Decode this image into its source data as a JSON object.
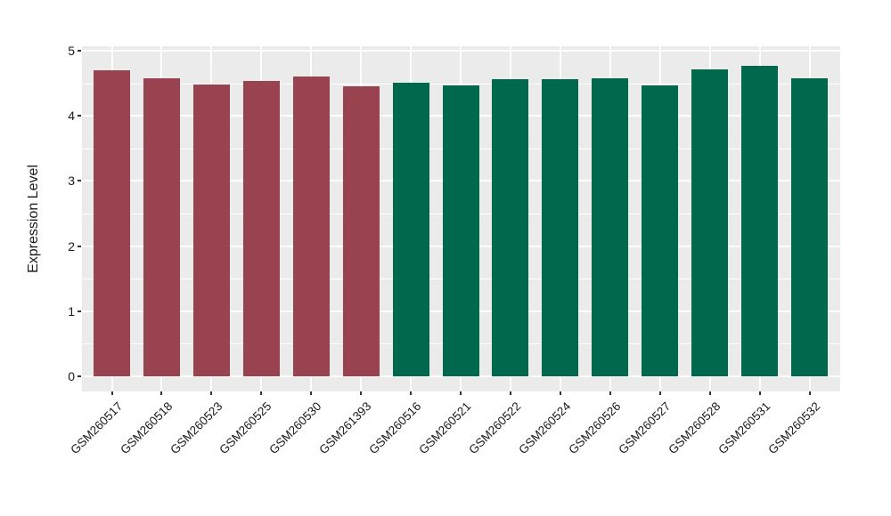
{
  "figure": {
    "background_color": "#FFFFFF",
    "panel_background_color": "#EBEBEB",
    "gridline_color": "#FFFFFF",
    "axis_text_color": "#1A1A1A",
    "tick_mark_color": "#333333"
  },
  "chart_data": {
    "type": "bar",
    "title": "",
    "xlabel": "",
    "ylabel": "Expression Level",
    "ylim": [
      0,
      5
    ],
    "yticks": [
      "0",
      "1",
      "2",
      "3",
      "4",
      "5"
    ],
    "minor_gridlines_y": [
      0.5,
      1.5,
      2.5,
      3.5,
      4.5
    ],
    "grid": "white major and minor horizontal lines plus vertical line at each category, on grey panel",
    "legend_position": "none",
    "x_label_rotation_deg": 45,
    "categories": [
      "GSM260517",
      "GSM260518",
      "GSM260523",
      "GSM260525",
      "GSM260530",
      "GSM261393",
      "GSM260516",
      "GSM260521",
      "GSM260522",
      "GSM260524",
      "GSM260526",
      "GSM260527",
      "GSM260528",
      "GSM260531",
      "GSM260532"
    ],
    "values": [
      4.7,
      4.57,
      4.48,
      4.54,
      4.61,
      4.45,
      4.51,
      4.47,
      4.56,
      4.56,
      4.58,
      4.47,
      4.71,
      4.77,
      4.57
    ],
    "bar_colors": [
      "#994350",
      "#994350",
      "#994350",
      "#994350",
      "#994350",
      "#994350",
      "#00694D",
      "#00694D",
      "#00694D",
      "#00694D",
      "#00694D",
      "#00694D",
      "#00694D",
      "#00694D",
      "#00694D"
    ],
    "groups": [
      {
        "name": "group-maroon",
        "color": "#994350",
        "samples": [
          "GSM260517",
          "GSM260518",
          "GSM260523",
          "GSM260525",
          "GSM260530",
          "GSM261393"
        ]
      },
      {
        "name": "group-green",
        "color": "#00694D",
        "samples": [
          "GSM260516",
          "GSM260521",
          "GSM260522",
          "GSM260524",
          "GSM260526",
          "GSM260527",
          "GSM260528",
          "GSM260531",
          "GSM260532"
        ]
      }
    ]
  }
}
